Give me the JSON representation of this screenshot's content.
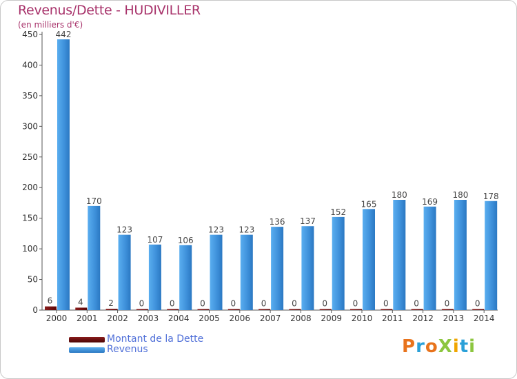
{
  "chart_data": {
    "type": "bar",
    "title": "Revenus/Dette - HUDIVILLER",
    "subtitle": "(en milliers d'€)",
    "xlabel": "",
    "ylabel": "",
    "ylim": [
      0,
      450
    ],
    "yticks": [
      0,
      50,
      100,
      150,
      200,
      250,
      300,
      350,
      400,
      450
    ],
    "categories": [
      "2000",
      "2001",
      "2002",
      "2003",
      "2004",
      "2005",
      "2006",
      "2007",
      "2008",
      "2009",
      "2010",
      "2011",
      "2012",
      "2013",
      "2014"
    ],
    "series": [
      {
        "name": "Montant de la Dette",
        "color": "#6b0a0a",
        "values": [
          6,
          4,
          2,
          0,
          0,
          0,
          0,
          0,
          0,
          0,
          0,
          0,
          0,
          0,
          0
        ]
      },
      {
        "name": "Revenus",
        "color": "#3d8fd9",
        "values": [
          442,
          170,
          123,
          107,
          106,
          123,
          123,
          136,
          137,
          152,
          165,
          180,
          169,
          180,
          178
        ]
      }
    ],
    "legend_position": "bottom-left",
    "grid": false
  },
  "branding": {
    "logo_text": "ProXiti",
    "logo_colors": [
      "#e8731c",
      "#2aa0d8",
      "#e8731c",
      "#8cc63f",
      "#f0a500",
      "#2aa0d8",
      "#8cc63f"
    ]
  },
  "colors": {
    "title": "#a8336b",
    "axis_text": "#333333",
    "value_label": "#444444",
    "legend_text": "#4f6fd8"
  }
}
